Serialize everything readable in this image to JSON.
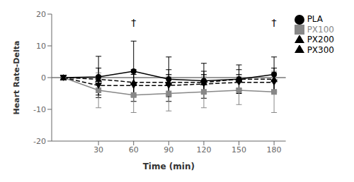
{
  "chart_data": {
    "type": "line",
    "xlabel": "Time (min)",
    "ylabel": "Heart Rate-Delta",
    "x": [
      0,
      30,
      60,
      90,
      120,
      150,
      180
    ],
    "xlim": [
      -10,
      190
    ],
    "xticks": [
      30,
      60,
      90,
      120,
      150,
      180
    ],
    "ylim": [
      -20,
      20
    ],
    "yticks": [
      -20,
      -10,
      0,
      10,
      20
    ],
    "grid": false,
    "legend": "right",
    "series": [
      {
        "name": "PLA",
        "color": "#000000",
        "marker": "circle",
        "line_style": "solid",
        "values": [
          0,
          0.2,
          2.0,
          -0.5,
          -1.0,
          -0.5,
          1.0
        ],
        "errors": [
          0,
          6.5,
          9.5,
          7.0,
          5.5,
          4.5,
          5.5
        ]
      },
      {
        "name": "PX100",
        "color": "#888888",
        "marker": "square",
        "line_style": "solid",
        "values": [
          0,
          -4.0,
          -5.5,
          -5.0,
          -4.5,
          -4.0,
          -4.5
        ],
        "errors": [
          0,
          5.5,
          5.5,
          5.5,
          5.0,
          4.5,
          6.5
        ]
      },
      {
        "name": "PX200",
        "color": "#000000",
        "marker": "triangle-up",
        "line_style": "dashed",
        "values": [
          0,
          -0.5,
          -1.5,
          -1.5,
          -1.5,
          -0.5,
          -0.5
        ],
        "errors": [
          0,
          3.5,
          4.0,
          4.0,
          3.5,
          3.0,
          3.5
        ]
      },
      {
        "name": "PX300",
        "color": "#000000",
        "marker": "triangle-down",
        "line_style": "dashed",
        "values": [
          0,
          -2.5,
          -2.5,
          -2.5,
          -2.0,
          -1.5,
          -1.5
        ],
        "errors": [
          0,
          3.0,
          3.5,
          3.5,
          3.0,
          2.5,
          3.0
        ]
      }
    ],
    "annotations": [
      {
        "text": "†",
        "x": 60,
        "y": 19.5
      },
      {
        "text": "†",
        "x": 180,
        "y": 19.5
      }
    ],
    "hlines": [
      0
    ]
  }
}
